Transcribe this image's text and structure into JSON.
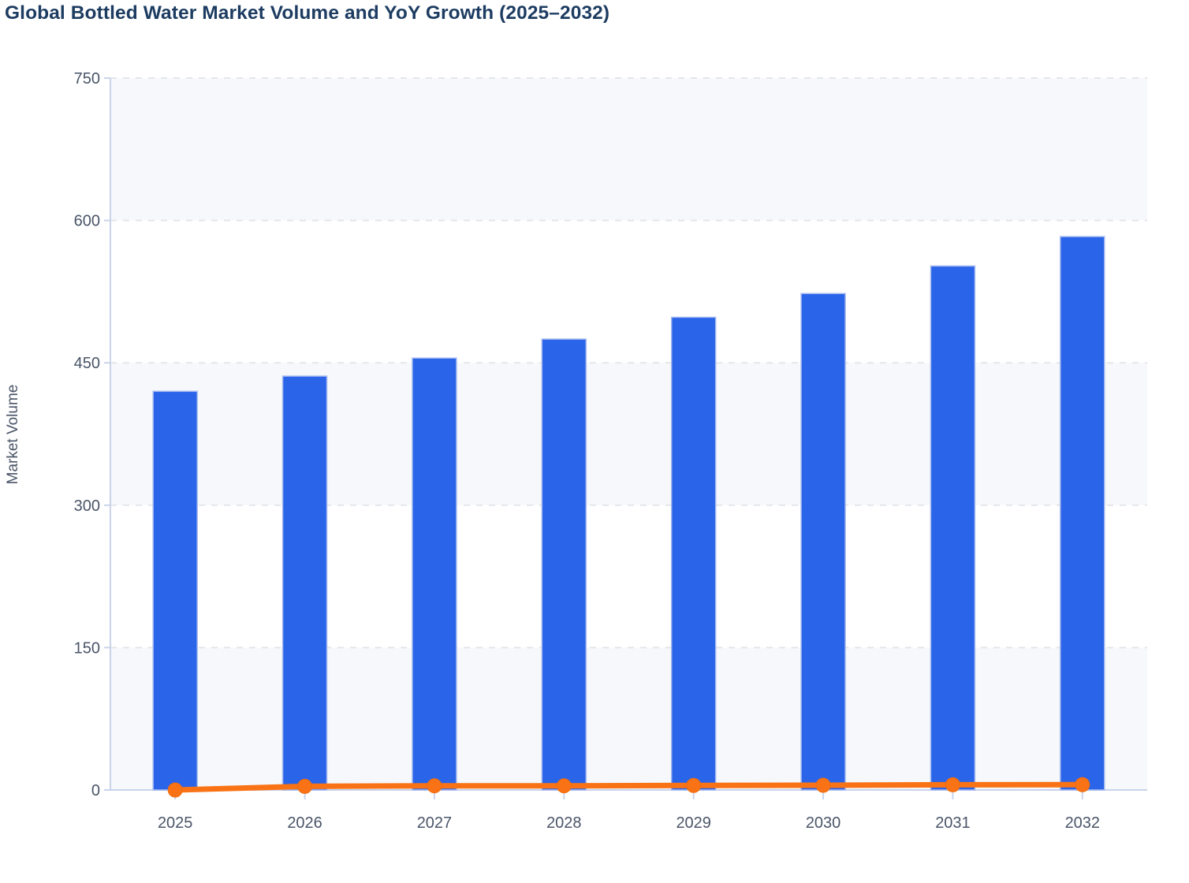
{
  "chart_data": {
    "type": "bar",
    "title": "Global Bottled Water Market Volume and YoY Growth (2025–2032)",
    "xlabel": "",
    "ylabel": "Market Volume",
    "categories": [
      "2025",
      "2026",
      "2027",
      "2028",
      "2029",
      "2030",
      "2031",
      "2032"
    ],
    "series": [
      {
        "name": "Market Volume",
        "type": "bar",
        "color": "#2a64e9",
        "border_color": "#a6baef",
        "values": [
          420,
          436,
          455,
          475,
          498,
          523,
          552,
          583
        ]
      },
      {
        "name": "YoY Growth",
        "type": "line",
        "color": "#f97316",
        "marker": "circle",
        "values": [
          0,
          3.8,
          4.4,
          4.4,
          4.8,
          5.0,
          5.5,
          5.6
        ]
      }
    ],
    "ylim": [
      0,
      750
    ],
    "yticks": [
      0,
      150,
      300,
      450,
      600,
      750
    ],
    "grid": "horizontal-dashed",
    "legend_position": "none",
    "plot_bands": "alternating light horizontal bands every 150 units starting light from 0"
  },
  "colors": {
    "title": "#1d3c61",
    "labels": "#4a5568",
    "axis": "#c9d3ea",
    "gridline": "#e4e6eb",
    "band": "#f6f8fb",
    "bar": "#2a64e9",
    "bar_border": "#a6baef",
    "line": "#f97316"
  }
}
